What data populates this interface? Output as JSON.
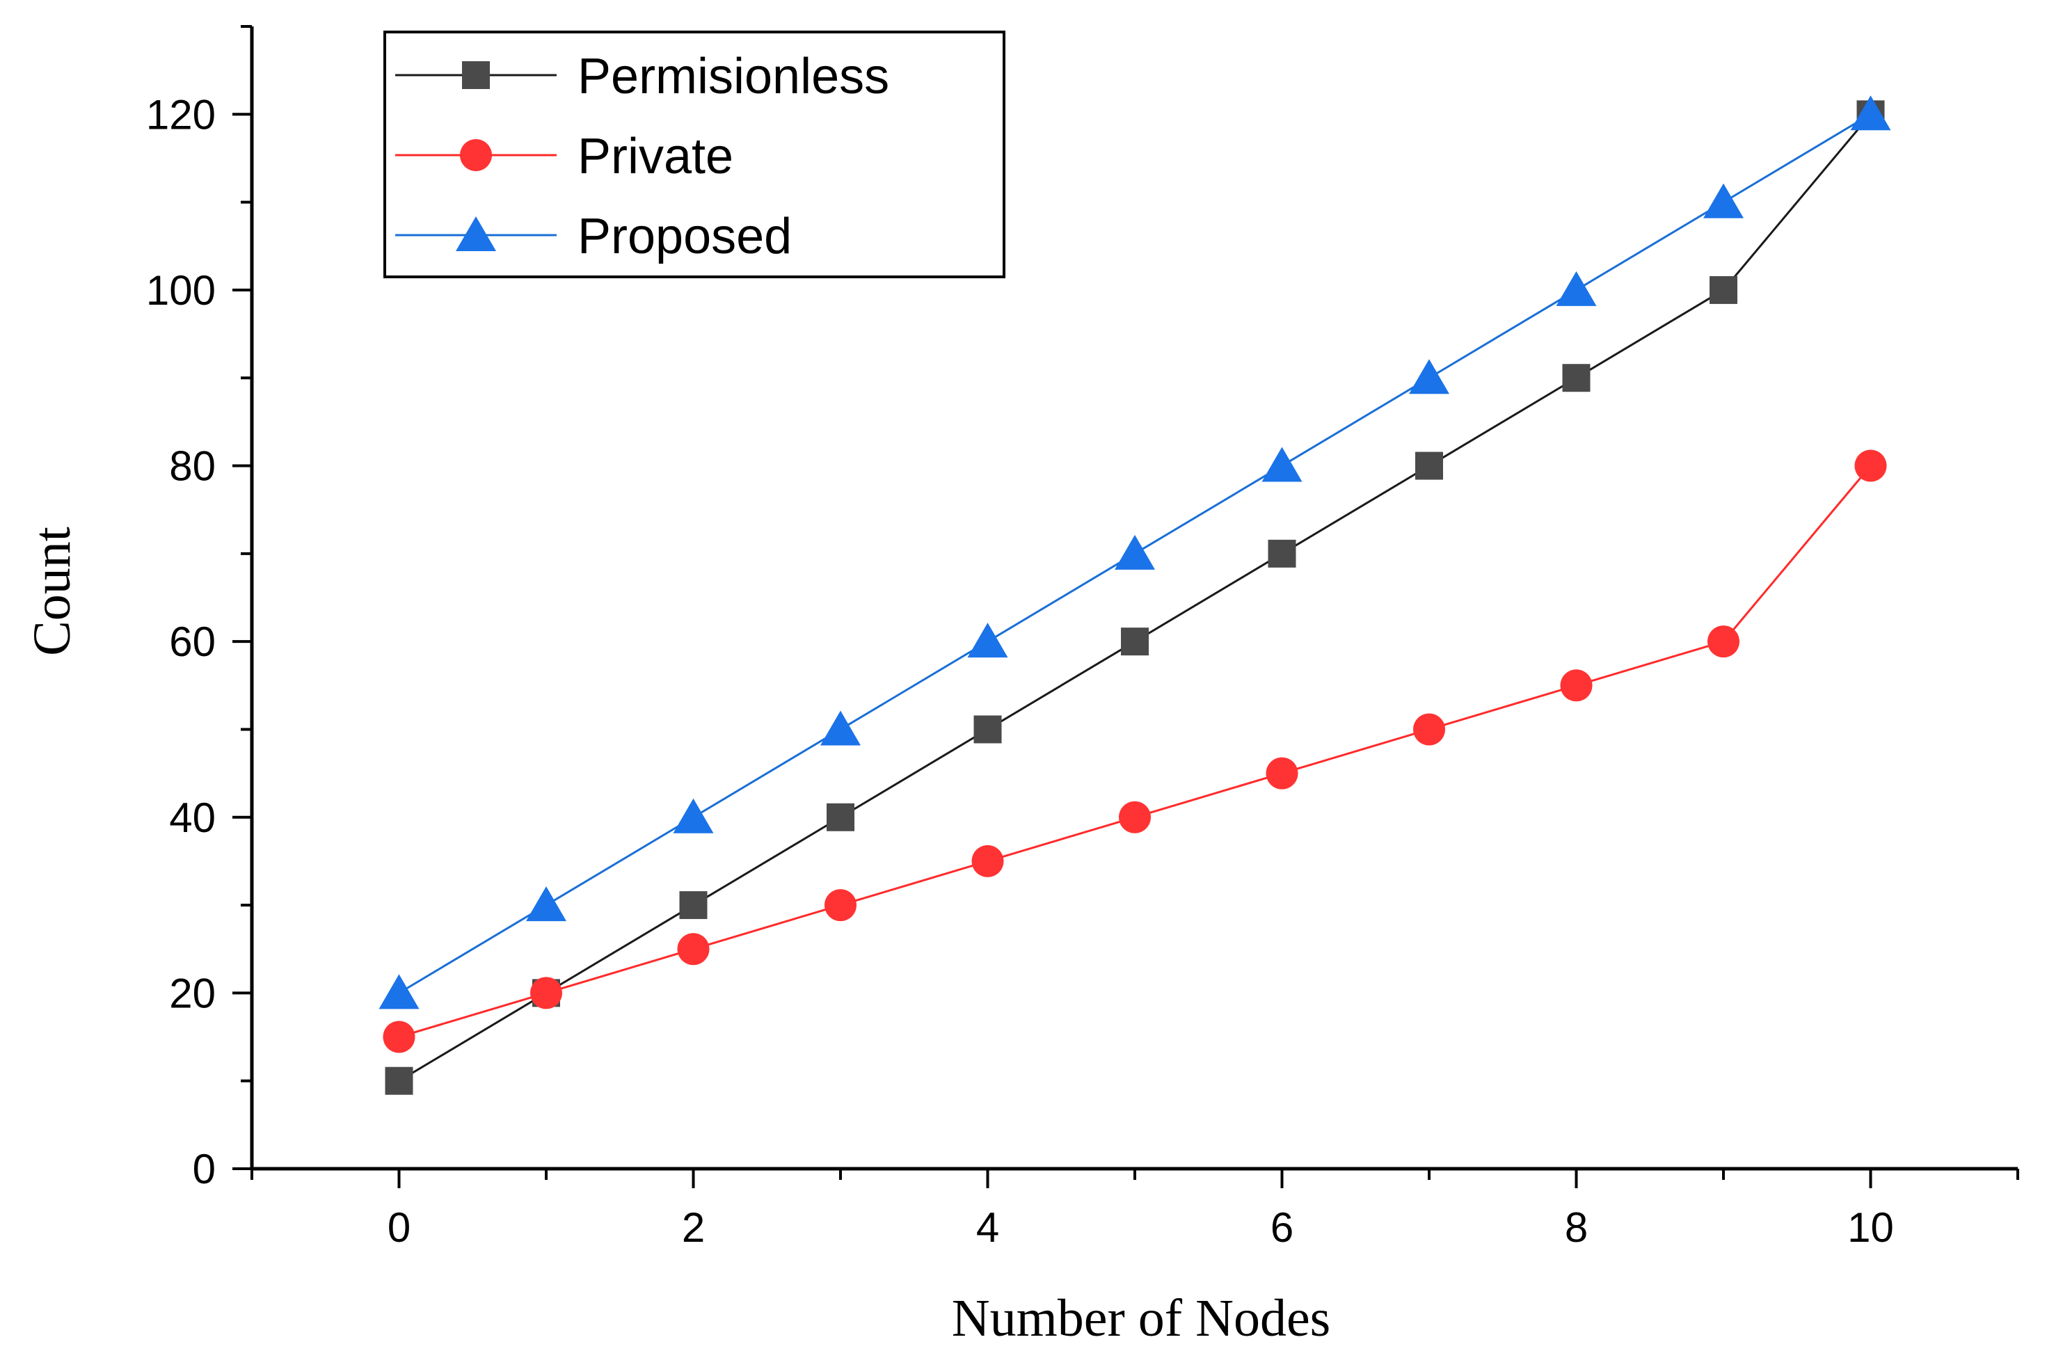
{
  "chart_data": {
    "type": "line",
    "xlabel": "Number of Nodes",
    "ylabel": "Count",
    "xlim": [
      -1,
      11
    ],
    "ylim": [
      0,
      130
    ],
    "xticks": [
      0,
      2,
      4,
      6,
      8,
      10
    ],
    "yticks": [
      0,
      20,
      40,
      60,
      80,
      100,
      120
    ],
    "grid": false,
    "legend_position": "top-left",
    "x": [
      0,
      1,
      2,
      3,
      4,
      5,
      6,
      7,
      8,
      9,
      10
    ],
    "series": [
      {
        "name": "Permisionless",
        "marker": "square",
        "color": "#1a1a1a",
        "marker_color": "#4a4a4a",
        "values": [
          10,
          20,
          30,
          40,
          50,
          60,
          70,
          80,
          90,
          100,
          120
        ]
      },
      {
        "name": "Private",
        "marker": "circle",
        "color": "#ff2a2a",
        "marker_color": "#ff3333",
        "values": [
          15,
          20,
          25,
          30,
          35,
          40,
          45,
          50,
          55,
          60,
          80
        ]
      },
      {
        "name": "Proposed",
        "marker": "triangle",
        "color": "#1a6fd6",
        "marker_color": "#1a73e8",
        "values": [
          20,
          30,
          40,
          50,
          60,
          70,
          80,
          90,
          100,
          110,
          120
        ]
      }
    ]
  }
}
